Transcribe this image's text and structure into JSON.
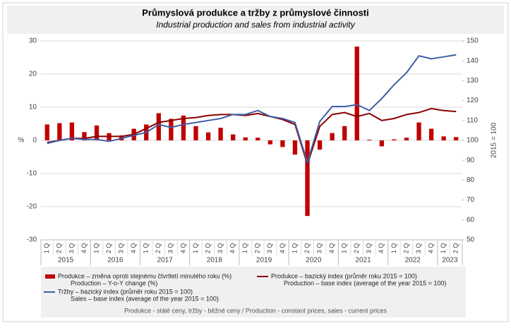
{
  "chart_data": {
    "type": "bar-line",
    "title": "Průmyslová produkce a tržby z průmyslové činnosti",
    "subtitle": "Industrial production and sales from industrial activity",
    "ylabel": "%",
    "y2label": "2015 = 100",
    "footnote": "Produkce - stálé ceny, tržby - běžné ceny / Production - constant prices, sales - current prices",
    "categories": [
      "1 Q",
      "2 Q",
      "3 Q",
      "4 Q",
      "1 Q",
      "2 Q",
      "3 Q",
      "4 Q",
      "1 Q",
      "2 Q",
      "3 Q",
      "4 Q",
      "1 Q",
      "2 Q",
      "3 Q",
      "4 Q",
      "1 Q",
      "2 Q",
      "3 Q",
      "4 Q",
      "1 Q",
      "2 Q",
      "3 Q",
      "4 Q",
      "1 Q",
      "2 Q",
      "3 Q",
      "4 Q",
      "1 Q",
      "2 Q",
      "3 Q",
      "4 Q",
      "1 Q",
      "2 Q"
    ],
    "years": [
      "2015",
      "2016",
      "2017",
      "2018",
      "2019",
      "2020",
      "2021",
      "2022",
      "2023"
    ],
    "ylim": [
      -30,
      30
    ],
    "yticks": [
      -30,
      -20,
      -10,
      0,
      10,
      20,
      30
    ],
    "y2lim": [
      50,
      150
    ],
    "y2ticks": [
      50,
      60,
      70,
      80,
      90,
      100,
      110,
      120,
      130,
      140,
      150
    ],
    "grid": true,
    "series": [
      {
        "name": "Produkce – změna oproti stejnému čtvrtletí minulého roku (%)",
        "name_en": "Production – Y-o-Y change (%)",
        "type": "bar",
        "color": "#c00000",
        "values": [
          4.8,
          5.2,
          5.4,
          2.5,
          4.5,
          2.2,
          1.5,
          3.5,
          4.8,
          8.2,
          6.5,
          7.5,
          4.3,
          2.4,
          3.8,
          1.8,
          0.9,
          0.8,
          -1.2,
          -2.0,
          -4.3,
          -22.8,
          -2.8,
          2.2,
          4.3,
          28.3,
          0.2,
          -1.8,
          0.3,
          0.8,
          5.4,
          3.5,
          1.2,
          1.0
        ]
      },
      {
        "name": "Produkce – bazický index (průměr roku 2015 = 100)",
        "name_en": "Production – base index (average of the year 2015 = 100)",
        "type": "line",
        "axis": "y2",
        "color": "#8b0000",
        "values": [
          99,
          100,
          101,
          101,
          102,
          102,
          102,
          103,
          106,
          109,
          110,
          111,
          111.5,
          112.5,
          113,
          113,
          112.5,
          113.5,
          112,
          110.5,
          108,
          88,
          107,
          113,
          114,
          112,
          113.5,
          110,
          111,
          113,
          114,
          116,
          115,
          114.5
        ]
      },
      {
        "name": "Tržby – bazický index (průměr roku 2015 = 100)",
        "name_en": "Sales – base index (average of the year 2015 = 100)",
        "type": "line",
        "axis": "y2",
        "color": "#3f5fa8",
        "values": [
          98.5,
          100,
          101,
          100.5,
          100.5,
          99.5,
          101,
          102.5,
          104,
          108,
          106.5,
          108,
          109,
          110,
          111,
          113,
          113,
          115,
          112,
          111,
          109,
          89,
          109.5,
          117,
          117,
          118,
          115,
          121,
          128,
          134,
          142.5,
          141,
          142,
          143
        ]
      }
    ]
  }
}
